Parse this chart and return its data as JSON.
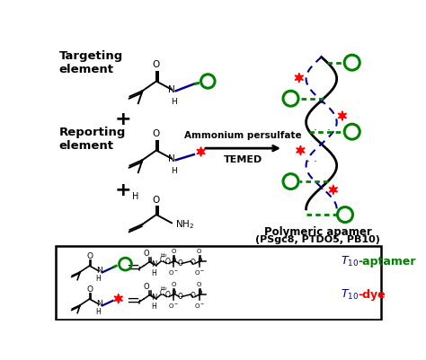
{
  "figsize": [
    4.74,
    4.01
  ],
  "dpi": 100,
  "colors": {
    "green": "#008000",
    "dark_blue": "#00008B",
    "red": "#ff0000",
    "black": "#000000",
    "white": "#ffffff"
  },
  "text": {
    "targeting_element": "Targeting\nelement",
    "reporting_element": "Reporting\nelement",
    "ammonium": "Ammonium persulfate",
    "temed": "TEMED",
    "polymeric_line1": "Polymeric apamer",
    "polymeric_line2": "(PSgc8, PTDO5, PB10)"
  }
}
